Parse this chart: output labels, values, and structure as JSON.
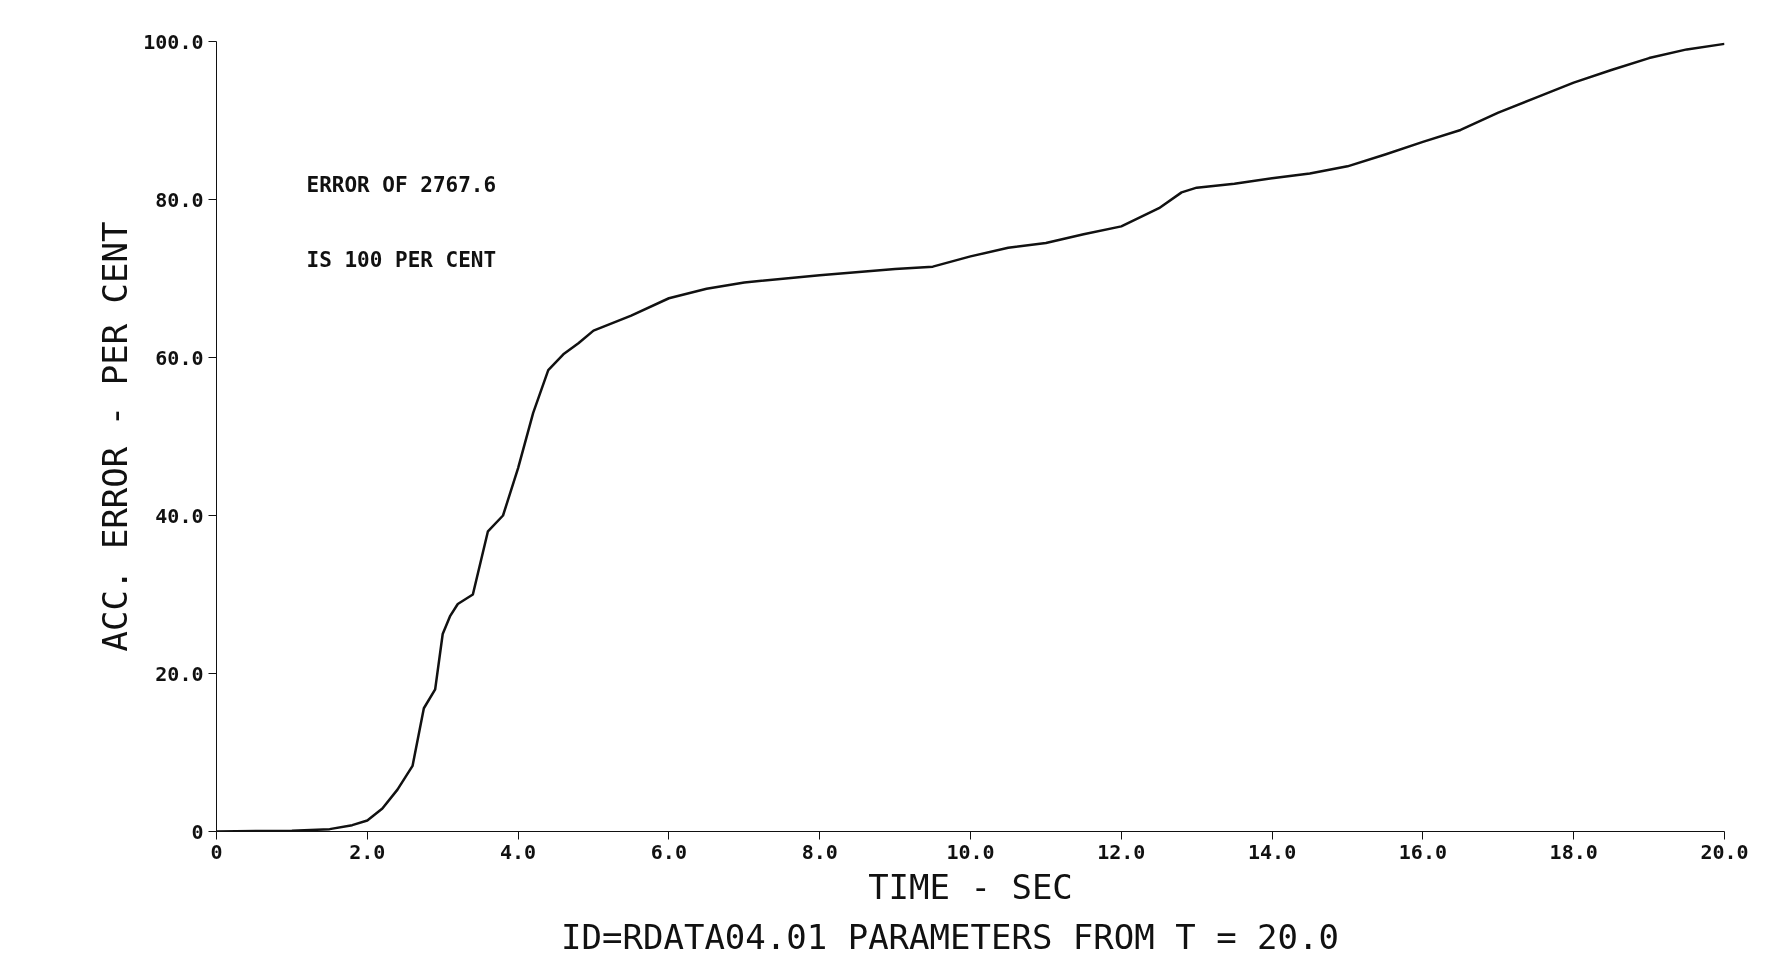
{
  "chart_data": {
    "type": "line",
    "xlabel": "TIME - SEC",
    "ylabel": "ACC. ERROR - PER CENT",
    "annotations": [
      "ERROR OF 2767.6",
      "IS 100 PER CENT",
      "ID=RDATA04.01   PARAMETERS FROM T = 20.0"
    ],
    "x": [
      0,
      1.0,
      1.5,
      1.8,
      2.0,
      2.2,
      2.4,
      2.6,
      2.75,
      2.9,
      3.0,
      3.1,
      3.2,
      3.4,
      3.6,
      3.8,
      4.0,
      4.2,
      4.4,
      4.6,
      4.8,
      5.0,
      5.5,
      6.0,
      6.5,
      7.0,
      8.0,
      9.0,
      9.5,
      10.0,
      10.5,
      11.0,
      11.5,
      12.0,
      12.5,
      12.8,
      13.0,
      13.5,
      14.0,
      14.5,
      15.0,
      15.5,
      16.0,
      16.5,
      17.0,
      17.5,
      18.0,
      18.5,
      19.0,
      19.5,
      20.0
    ],
    "values": [
      0,
      0.1,
      0.3,
      0.8,
      1.4,
      2.9,
      5.3,
      8.3,
      15.6,
      18,
      25,
      27.3,
      28.8,
      30,
      38,
      40,
      46,
      53,
      58.4,
      60.4,
      61.8,
      63.4,
      65.3,
      67.5,
      68.7,
      69.5,
      70.4,
      71.2,
      71.5,
      72.8,
      73.9,
      74.5,
      75.6,
      76.6,
      78.9,
      80.9,
      81.5,
      82,
      82.7,
      83.3,
      84.2,
      85.7,
      87.3,
      88.8,
      91,
      92.9,
      94.8,
      96.4,
      97.9,
      99,
      99.7
    ],
    "color": "#111111",
    "line_style": "solid",
    "marker": "none",
    "grid": false,
    "xlim": [
      0,
      20
    ],
    "ylim": [
      0,
      100
    ],
    "xticks": [
      0,
      {
        "value": 2,
        "label": "2.0"
      },
      {
        "value": 4,
        "label": "4.0"
      },
      {
        "value": 6,
        "label": "6.0"
      },
      {
        "value": 8,
        "label": "8.0"
      },
      {
        "value": 10,
        "label": "10.0"
      },
      {
        "value": 12,
        "label": "12.0"
      },
      {
        "value": 14,
        "label": "14.0"
      },
      {
        "value": 16,
        "label": "16.0"
      },
      {
        "value": 18,
        "label": "18.0"
      },
      {
        "value": 20,
        "label": "20.0"
      }
    ],
    "yticks": [
      0,
      {
        "value": 20,
        "label": "20.0"
      },
      {
        "value": 40,
        "label": "40.0"
      },
      {
        "value": 60,
        "label": "60.0"
      },
      {
        "value": 80,
        "label": "80.0"
      },
      {
        "value": 100,
        "label": "100.0"
      }
    ]
  }
}
